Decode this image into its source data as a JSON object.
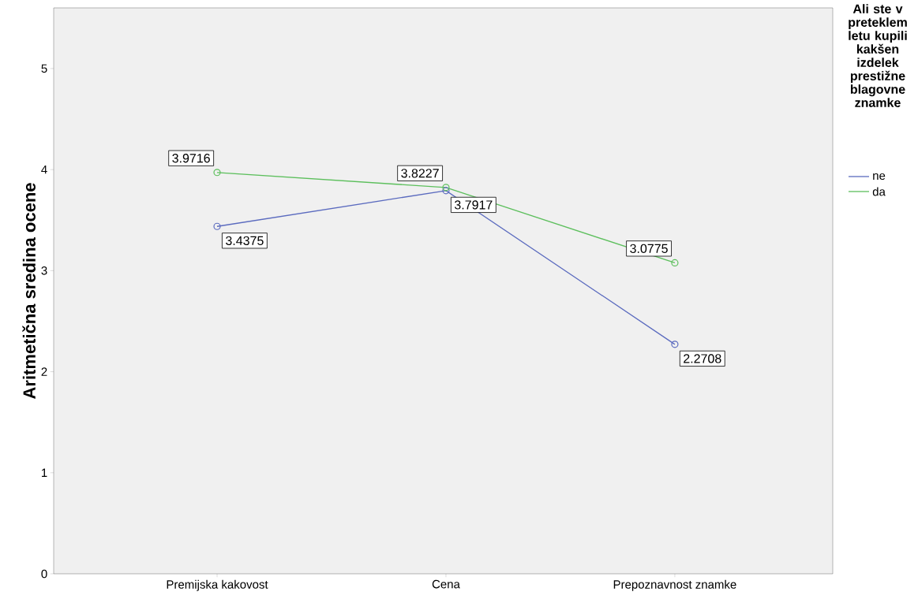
{
  "chart_data": {
    "type": "line",
    "ylabel": "Aritmetična sredina ocene",
    "legend_title": "Ali ste v preteklem letu kupili kakšen izdelek prestižne blagovne znamke",
    "categories": [
      "Premijska kakovost",
      "Cena",
      "Prepoznavnost znamke"
    ],
    "series": [
      {
        "name": "ne",
        "color": "#5b6bbf",
        "values": [
          3.4375,
          3.7917,
          2.2708
        ]
      },
      {
        "name": "da",
        "color": "#5cbf5c",
        "values": [
          3.9716,
          3.8227,
          3.0775
        ]
      }
    ],
    "ylim": [
      0,
      5.6
    ],
    "yticks": [
      0,
      1,
      2,
      3,
      4,
      5
    ],
    "marker": "circle",
    "data_labels": true,
    "legend": "right",
    "grid": false
  }
}
